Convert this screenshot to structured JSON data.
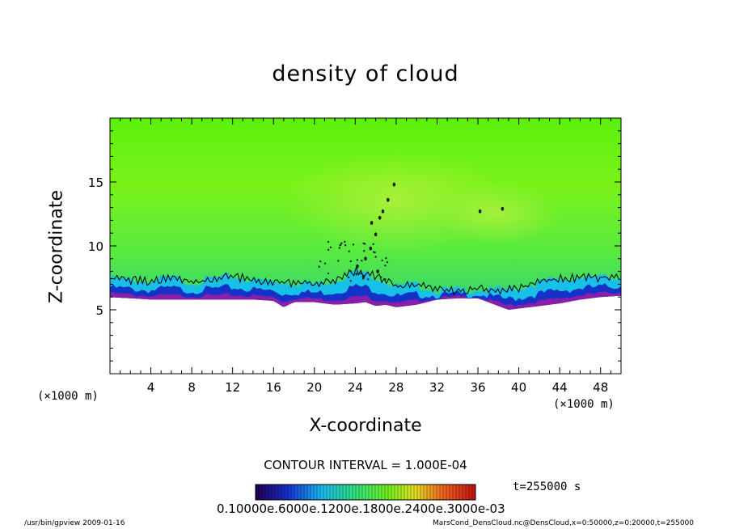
{
  "chart_data": {
    "type": "heatmap",
    "title": "density of cloud",
    "xlabel": "X-coordinate",
    "ylabel": "Z-coordinate",
    "x_unit": "(×1000 m)",
    "y_unit": "(×1000 m)",
    "xlim": [
      0,
      50
    ],
    "ylim": [
      0,
      20
    ],
    "x_ticks": [
      4,
      8,
      12,
      16,
      20,
      24,
      28,
      32,
      36,
      40,
      44,
      48
    ],
    "y_ticks": [
      5,
      10,
      15
    ],
    "contour_interval": "CONTOUR INTERVAL = 1.000E-04",
    "time_label": "t=255000 s",
    "colorbar_ticks": "0.10000e.6000e.1200e.1800e.2400e.3000e-03",
    "cloud_base_profile": {
      "x": [
        0,
        2,
        4,
        6,
        8,
        10,
        12,
        14,
        16,
        17,
        18,
        20,
        22,
        24,
        25,
        26,
        27,
        28,
        30,
        32,
        34,
        36,
        38,
        39,
        40,
        42,
        44,
        46,
        48,
        50
      ],
      "z": [
        6.0,
        5.9,
        5.8,
        5.8,
        5.8,
        5.8,
        5.8,
        5.8,
        5.7,
        5.2,
        5.6,
        5.6,
        5.4,
        5.5,
        5.6,
        5.3,
        5.4,
        5.2,
        5.4,
        5.8,
        5.9,
        5.9,
        5.3,
        5.0,
        5.1,
        5.3,
        5.5,
        5.8,
        6.0,
        6.1
      ]
    },
    "contour_top_profile": {
      "x": [
        0,
        2,
        4,
        6,
        8,
        10,
        12,
        14,
        16,
        18,
        20,
        22,
        24,
        26,
        28,
        30,
        32,
        34,
        36,
        38,
        40,
        42,
        44,
        46,
        48,
        50
      ],
      "z": [
        7.6,
        7.5,
        7.4,
        7.7,
        7.3,
        7.6,
        7.8,
        7.5,
        7.4,
        7.3,
        7.2,
        7.5,
        8.2,
        7.8,
        7.0,
        7.1,
        6.7,
        6.7,
        6.8,
        6.7,
        6.9,
        7.3,
        7.6,
        7.7,
        7.7,
        7.8
      ]
    },
    "cloud_plume": {
      "x": [
        24.2,
        25.0,
        25.5,
        26.0,
        26.4,
        26.7,
        27.2,
        27.8,
        25.6,
        24.8,
        26.2,
        36.2,
        38.4
      ],
      "z": [
        8.4,
        9.0,
        9.8,
        10.9,
        12.2,
        12.7,
        13.6,
        14.8,
        11.8,
        7.6,
        8.0,
        12.7,
        12.9
      ]
    },
    "colors": {
      "cloud_top": "#62f20a",
      "cloud_mid": "#9cf22c",
      "cloud_low": "#3cd860",
      "base_cyan": "#18c0e8",
      "base_blue": "#1432c8",
      "base_purple": "#8a1ea8"
    }
  },
  "footer": {
    "left": "/usr/bin/gpview   2009-01-16",
    "right": "MarsCond_DensCloud.nc@DensCloud,x=0:50000,z=0:20000,t=255000"
  }
}
